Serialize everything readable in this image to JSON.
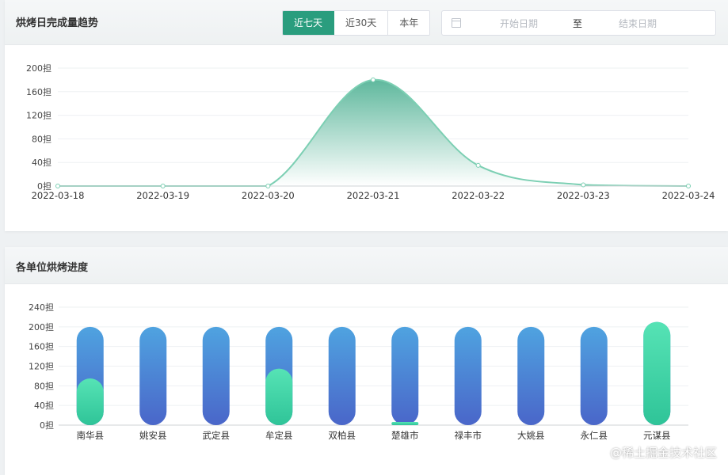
{
  "trend_panel": {
    "title": "烘烤日完成量趋势",
    "range_buttons": [
      {
        "label": "近七天",
        "active": true
      },
      {
        "label": "近30天",
        "active": false
      },
      {
        "label": "本年",
        "active": false
      }
    ],
    "date_range": {
      "start_placeholder": "开始日期",
      "separator": "至",
      "end_placeholder": "结束日期"
    }
  },
  "progress_panel": {
    "title": "各单位烘烤进度"
  },
  "watermark": "@稀土掘金技术社区",
  "chart_data": [
    {
      "type": "area",
      "x": [
        "2022-03-18",
        "2022-03-19",
        "2022-03-20",
        "2022-03-21",
        "2022-03-22",
        "2022-03-23",
        "2022-03-24"
      ],
      "values": [
        0,
        0,
        0,
        180,
        35,
        2,
        0
      ],
      "y_ticks": [
        "0担",
        "40担",
        "80担",
        "120担",
        "160担",
        "200担"
      ],
      "ylim": [
        0,
        200
      ],
      "grid": true,
      "smooth": true,
      "colors": {
        "line": "#7ccfb3",
        "area_top": "#5fb89d",
        "area_bottom": "#ffffff"
      }
    },
    {
      "type": "bar",
      "categories": [
        "南华县",
        "姚安县",
        "武定县",
        "牟定县",
        "双柏县",
        "楚雄市",
        "禄丰市",
        "大姚县",
        "永仁县",
        "元谋县"
      ],
      "target": [
        200,
        200,
        200,
        200,
        200,
        200,
        200,
        200,
        200,
        210
      ],
      "completed": [
        95,
        0,
        0,
        115,
        0,
        4,
        0,
        0,
        0,
        210
      ],
      "y_ticks": [
        "0担",
        "40担",
        "80担",
        "120担",
        "160担",
        "200担",
        "240担"
      ],
      "ylim": [
        0,
        240
      ],
      "grid": true,
      "colors": {
        "target_top": "#4fa3e0",
        "target_bottom": "#4a66c9",
        "completed_top": "#56e3b5",
        "completed_bottom": "#2fc498"
      }
    }
  ]
}
